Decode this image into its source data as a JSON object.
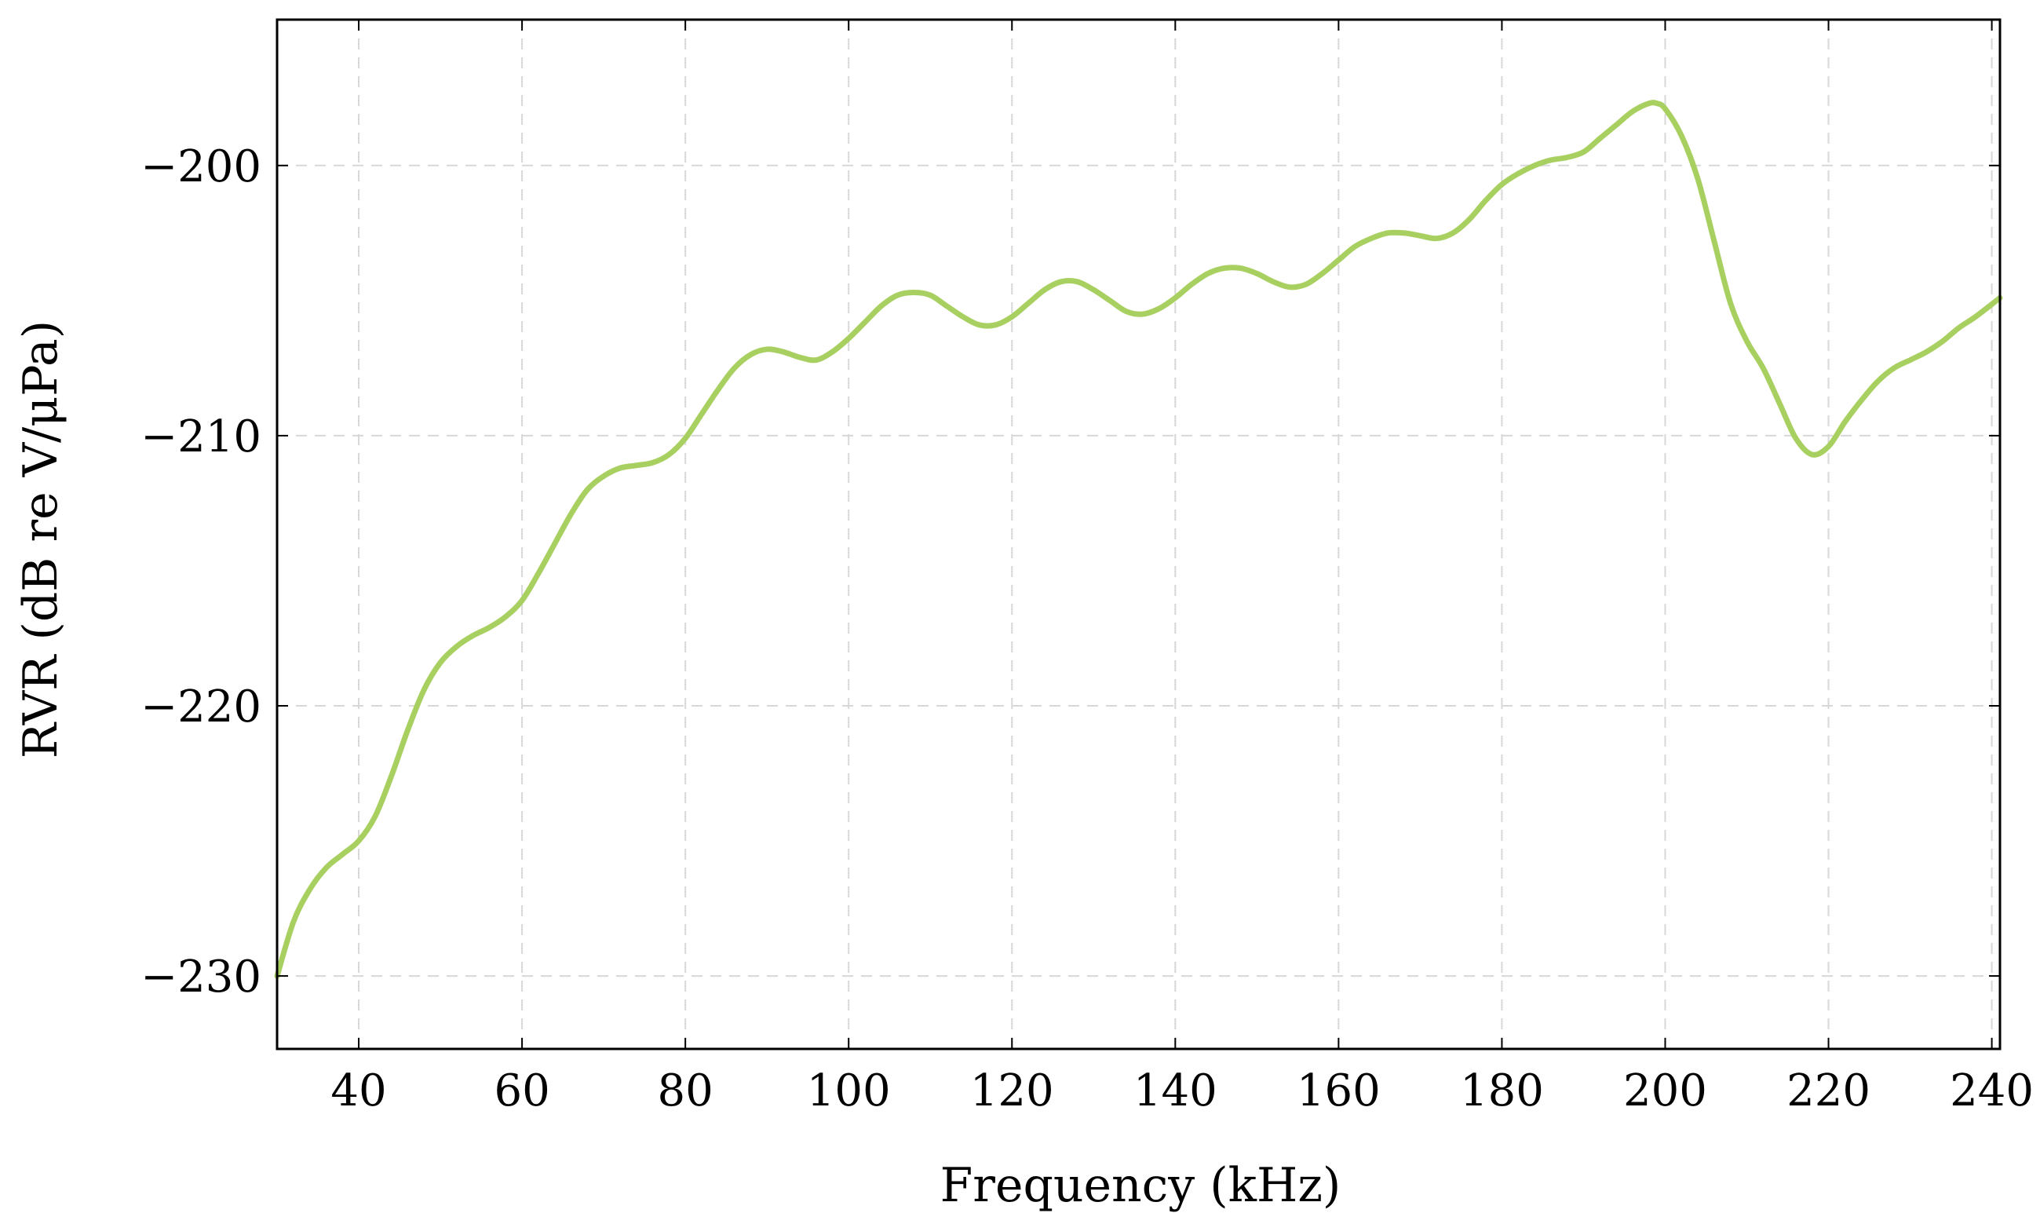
{
  "chart_data": {
    "type": "line",
    "title": "",
    "xlabel": "Frequency (kHz)",
    "ylabel": "RVR (dB re V/μPa)",
    "xlim": [
      30,
      241
    ],
    "ylim": [
      -232.7,
      -194.6
    ],
    "xticks": [
      40,
      60,
      80,
      100,
      120,
      140,
      160,
      180,
      200,
      220,
      240
    ],
    "yticks": [
      -230,
      -220,
      -210,
      -200
    ],
    "xtick_labels": [
      "40",
      "60",
      "80",
      "100",
      "120",
      "140",
      "160",
      "180",
      "200",
      "220",
      "240"
    ],
    "ytick_labels": [
      "−230",
      "−220",
      "−210",
      "−200"
    ],
    "grid": true,
    "legend": "none",
    "series": [
      {
        "color": "#a8d060",
        "x": [
          30,
          32,
          34,
          36,
          38,
          40,
          42,
          44,
          46,
          48,
          50,
          52,
          54,
          56,
          58,
          60,
          62,
          64,
          66,
          68,
          70,
          72,
          74,
          76,
          78,
          80,
          82,
          84,
          86,
          88,
          90,
          92,
          94,
          96,
          98,
          100,
          102,
          104,
          106,
          108,
          110,
          112,
          114,
          116,
          118,
          120,
          122,
          124,
          126,
          128,
          130,
          132,
          134,
          136,
          138,
          140,
          142,
          144,
          146,
          148,
          150,
          152,
          154,
          156,
          158,
          160,
          162,
          164,
          166,
          168,
          170,
          172,
          174,
          176,
          178,
          180,
          182,
          184,
          186,
          188,
          190,
          192,
          194,
          196,
          198,
          199,
          200,
          202,
          204,
          206,
          208,
          210,
          212,
          214,
          216,
          218,
          220,
          222,
          224,
          226,
          228,
          230,
          232,
          234,
          236,
          238,
          241
        ],
        "y": [
          -230,
          -228,
          -226.8,
          -226,
          -225.5,
          -225,
          -224.1,
          -222.6,
          -220.9,
          -219.4,
          -218.4,
          -217.8,
          -217.4,
          -217.1,
          -216.7,
          -216.1,
          -215.1,
          -214.0,
          -212.9,
          -212.0,
          -211.5,
          -211.2,
          -211.1,
          -211.0,
          -210.7,
          -210.1,
          -209.2,
          -208.3,
          -207.5,
          -207.0,
          -206.8,
          -206.9,
          -207.1,
          -207.2,
          -206.9,
          -206.4,
          -205.8,
          -205.2,
          -204.8,
          -204.7,
          -204.8,
          -205.2,
          -205.6,
          -205.9,
          -205.9,
          -205.6,
          -205.1,
          -204.6,
          -204.3,
          -204.3,
          -204.6,
          -205.0,
          -205.4,
          -205.5,
          -205.3,
          -204.9,
          -204.4,
          -204.0,
          -203.8,
          -203.8,
          -204.0,
          -204.3,
          -204.5,
          -204.4,
          -204.0,
          -203.5,
          -203.0,
          -202.7,
          -202.5,
          -202.5,
          -202.6,
          -202.7,
          -202.5,
          -202.0,
          -201.3,
          -200.7,
          -200.3,
          -200.0,
          -199.8,
          -199.7,
          -199.5,
          -199.0,
          -198.5,
          -198.0,
          -197.7,
          -197.7,
          -197.9,
          -198.9,
          -200.5,
          -202.8,
          -205.1,
          -206.5,
          -207.5,
          -208.8,
          -210.1,
          -210.7,
          -210.4,
          -209.5,
          -208.7,
          -208.0,
          -207.5,
          -207.2,
          -206.9,
          -206.5,
          -206.0,
          -205.6,
          -204.9
        ]
      }
    ]
  }
}
